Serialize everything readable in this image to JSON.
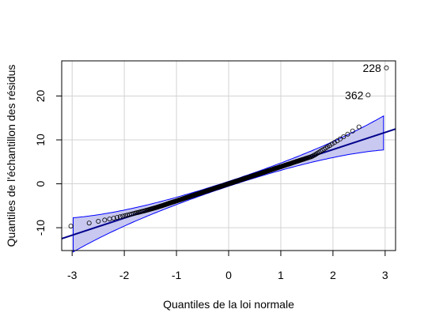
{
  "chart_data": {
    "type": "scatter",
    "title": "",
    "xlabel": "Quantiles de la loi normale",
    "ylabel": "Quantiles de l'échantillon des résidus",
    "xlim": [
      -3.2,
      3.2
    ],
    "ylim": [
      -15.2,
      28.0
    ],
    "xticks": [
      -3,
      -2,
      -1,
      0,
      1,
      2,
      3
    ],
    "yticks": [
      -10,
      0,
      10,
      20
    ],
    "grid": true,
    "reference_line": {
      "intercept": 0.0,
      "slope": 3.9,
      "color": "#00008B"
    },
    "envelope_color": "#0000FF",
    "point_labels": [
      {
        "label": "228",
        "x": 3.0,
        "y": 26.4
      },
      {
        "label": "362",
        "x": 2.66,
        "y": 20.2
      }
    ],
    "colors": {
      "points": "#000000",
      "line": "#00008B",
      "envelope_fill": "#C8C8F0",
      "envelope_stroke": "#0000FF",
      "grid": "#D3D3D3"
    }
  }
}
